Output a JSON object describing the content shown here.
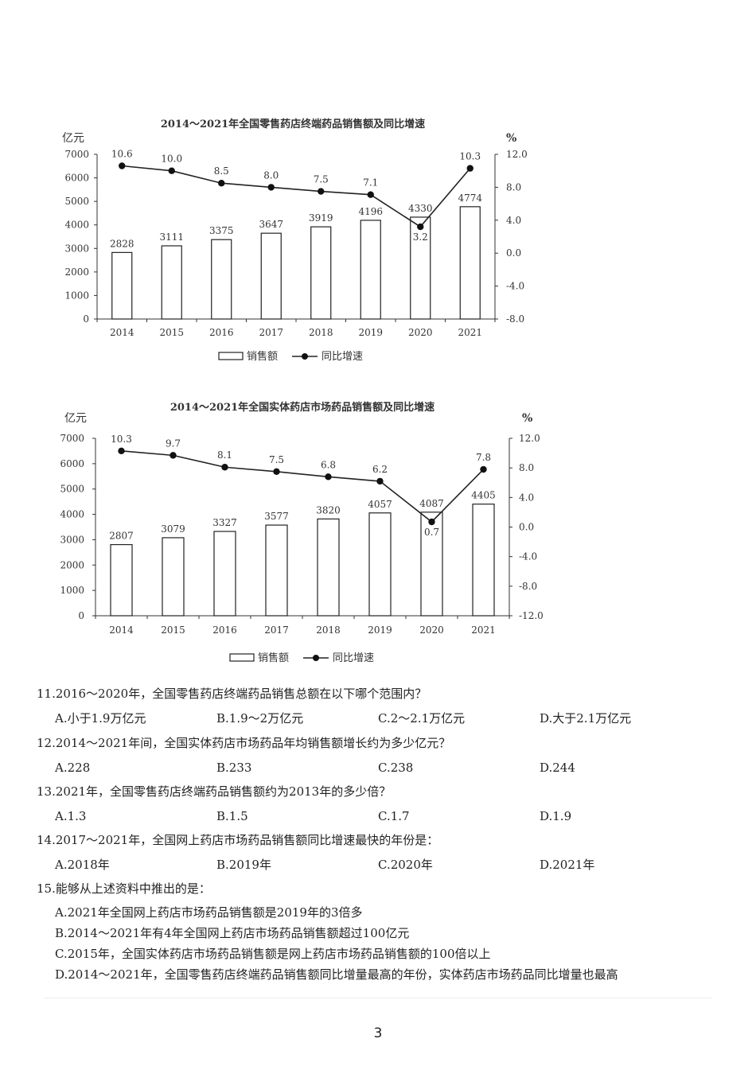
{
  "chart_data": [
    {
      "type": "bar+line",
      "title": "2014～2021年全国零售药店终端药品销售额及同比增速",
      "left_unit": "亿元",
      "right_unit": "%",
      "categories": [
        "2014",
        "2015",
        "2016",
        "2017",
        "2018",
        "2019",
        "2020",
        "2021"
      ],
      "series": [
        {
          "name": "销售额",
          "type": "bar",
          "values": [
            2828,
            3111,
            3375,
            3647,
            3919,
            4196,
            4330,
            4774
          ]
        },
        {
          "name": "同比增速",
          "type": "line",
          "values": [
            10.6,
            10.0,
            8.5,
            8.0,
            7.5,
            7.1,
            3.2,
            10.3
          ]
        }
      ],
      "bar_labels": [
        "2828",
        "3111",
        "3375",
        "3647",
        "3919",
        "4196",
        "4330",
        "4774"
      ],
      "line_labels": [
        "10.6",
        "10.0",
        "8.5",
        "8.0",
        "7.5",
        "7.1",
        "3.2",
        "10.3"
      ],
      "left_ticks": [
        "7000",
        "6000",
        "5000",
        "4000",
        "3000",
        "2000",
        "1000",
        "0"
      ],
      "right_ticks": [
        "12.0",
        "8.0",
        "4.0",
        "0.0",
        "-4.0",
        "-8.0"
      ],
      "ylim_left": [
        0,
        7000
      ],
      "ylim_right": [
        -8,
        12
      ],
      "legend": "bottom"
    },
    {
      "type": "bar+line",
      "title": "2014～2021年全国实体药店市场药品销售额及同比增速",
      "left_unit": "亿元",
      "right_unit": "%",
      "categories": [
        "2014",
        "2015",
        "2016",
        "2017",
        "2018",
        "2019",
        "2020",
        "2021"
      ],
      "series": [
        {
          "name": "销售额",
          "type": "bar",
          "values": [
            2807,
            3079,
            3327,
            3577,
            3820,
            4057,
            4087,
            4405
          ]
        },
        {
          "name": "同比增速",
          "type": "line",
          "values": [
            10.3,
            9.7,
            8.1,
            7.5,
            6.8,
            6.2,
            0.7,
            7.8
          ]
        }
      ],
      "bar_labels": [
        "2807",
        "3079",
        "3327",
        "3577",
        "3820",
        "4057",
        "4087",
        "4405"
      ],
      "line_labels": [
        "10.3",
        "9.7",
        "8.1",
        "7.5",
        "6.8",
        "6.2",
        "0.7",
        "7.8"
      ],
      "left_ticks": [
        "7000",
        "6000",
        "5000",
        "4000",
        "3000",
        "2000",
        "1000",
        "0"
      ],
      "right_ticks": [
        "12.0",
        "8.0",
        "4.0",
        "0.0",
        "-4.0",
        "-8.0",
        "-12.0"
      ],
      "ylim_left": [
        0,
        7000
      ],
      "ylim_right": [
        -12,
        12
      ],
      "legend": "bottom"
    }
  ],
  "questions": [
    {
      "stem": "11.2016～2020年，全国零售药店终端药品销售总额在以下哪个范围内？",
      "options": [
        "A.小于1.9万亿元",
        "B.1.9～2万亿元",
        "C.2～2.1万亿元",
        "D.大于2.1万亿元"
      ]
    },
    {
      "stem": "12.2014～2021年间，全国实体药店市场药品年均销售额增长约为多少亿元？",
      "options": [
        "A.228",
        "B.233",
        "C.238",
        "D.244"
      ]
    },
    {
      "stem": "13.2021年，全国零售药店终端药品销售额约为2013年的多少倍？",
      "options": [
        "A.1.3",
        "B.1.5",
        "C.1.7",
        "D.1.9"
      ]
    },
    {
      "stem": "14.2017～2021年，全国网上药店市场药品销售额同比增速最快的年份是：",
      "options": [
        "A.2018年",
        "B.2019年",
        "C.2020年",
        "D.2021年"
      ]
    },
    {
      "stem": "15.能够从上述资料中推出的是：",
      "options": [
        "A.2021年全国网上药店市场药品销售额是2019年的3倍多",
        "B.2014～2021年有4年全国网上药店市场药品销售额超过100亿元",
        "C.2015年，全国实体药店市场药品销售额是网上药店市场药品销售额的100倍以上",
        "D.2014～2021年，全国零售药店终端药品销售额同比增量最高的年份，实体药店市场药品同比增量也最高"
      ]
    }
  ],
  "page_number": "3"
}
